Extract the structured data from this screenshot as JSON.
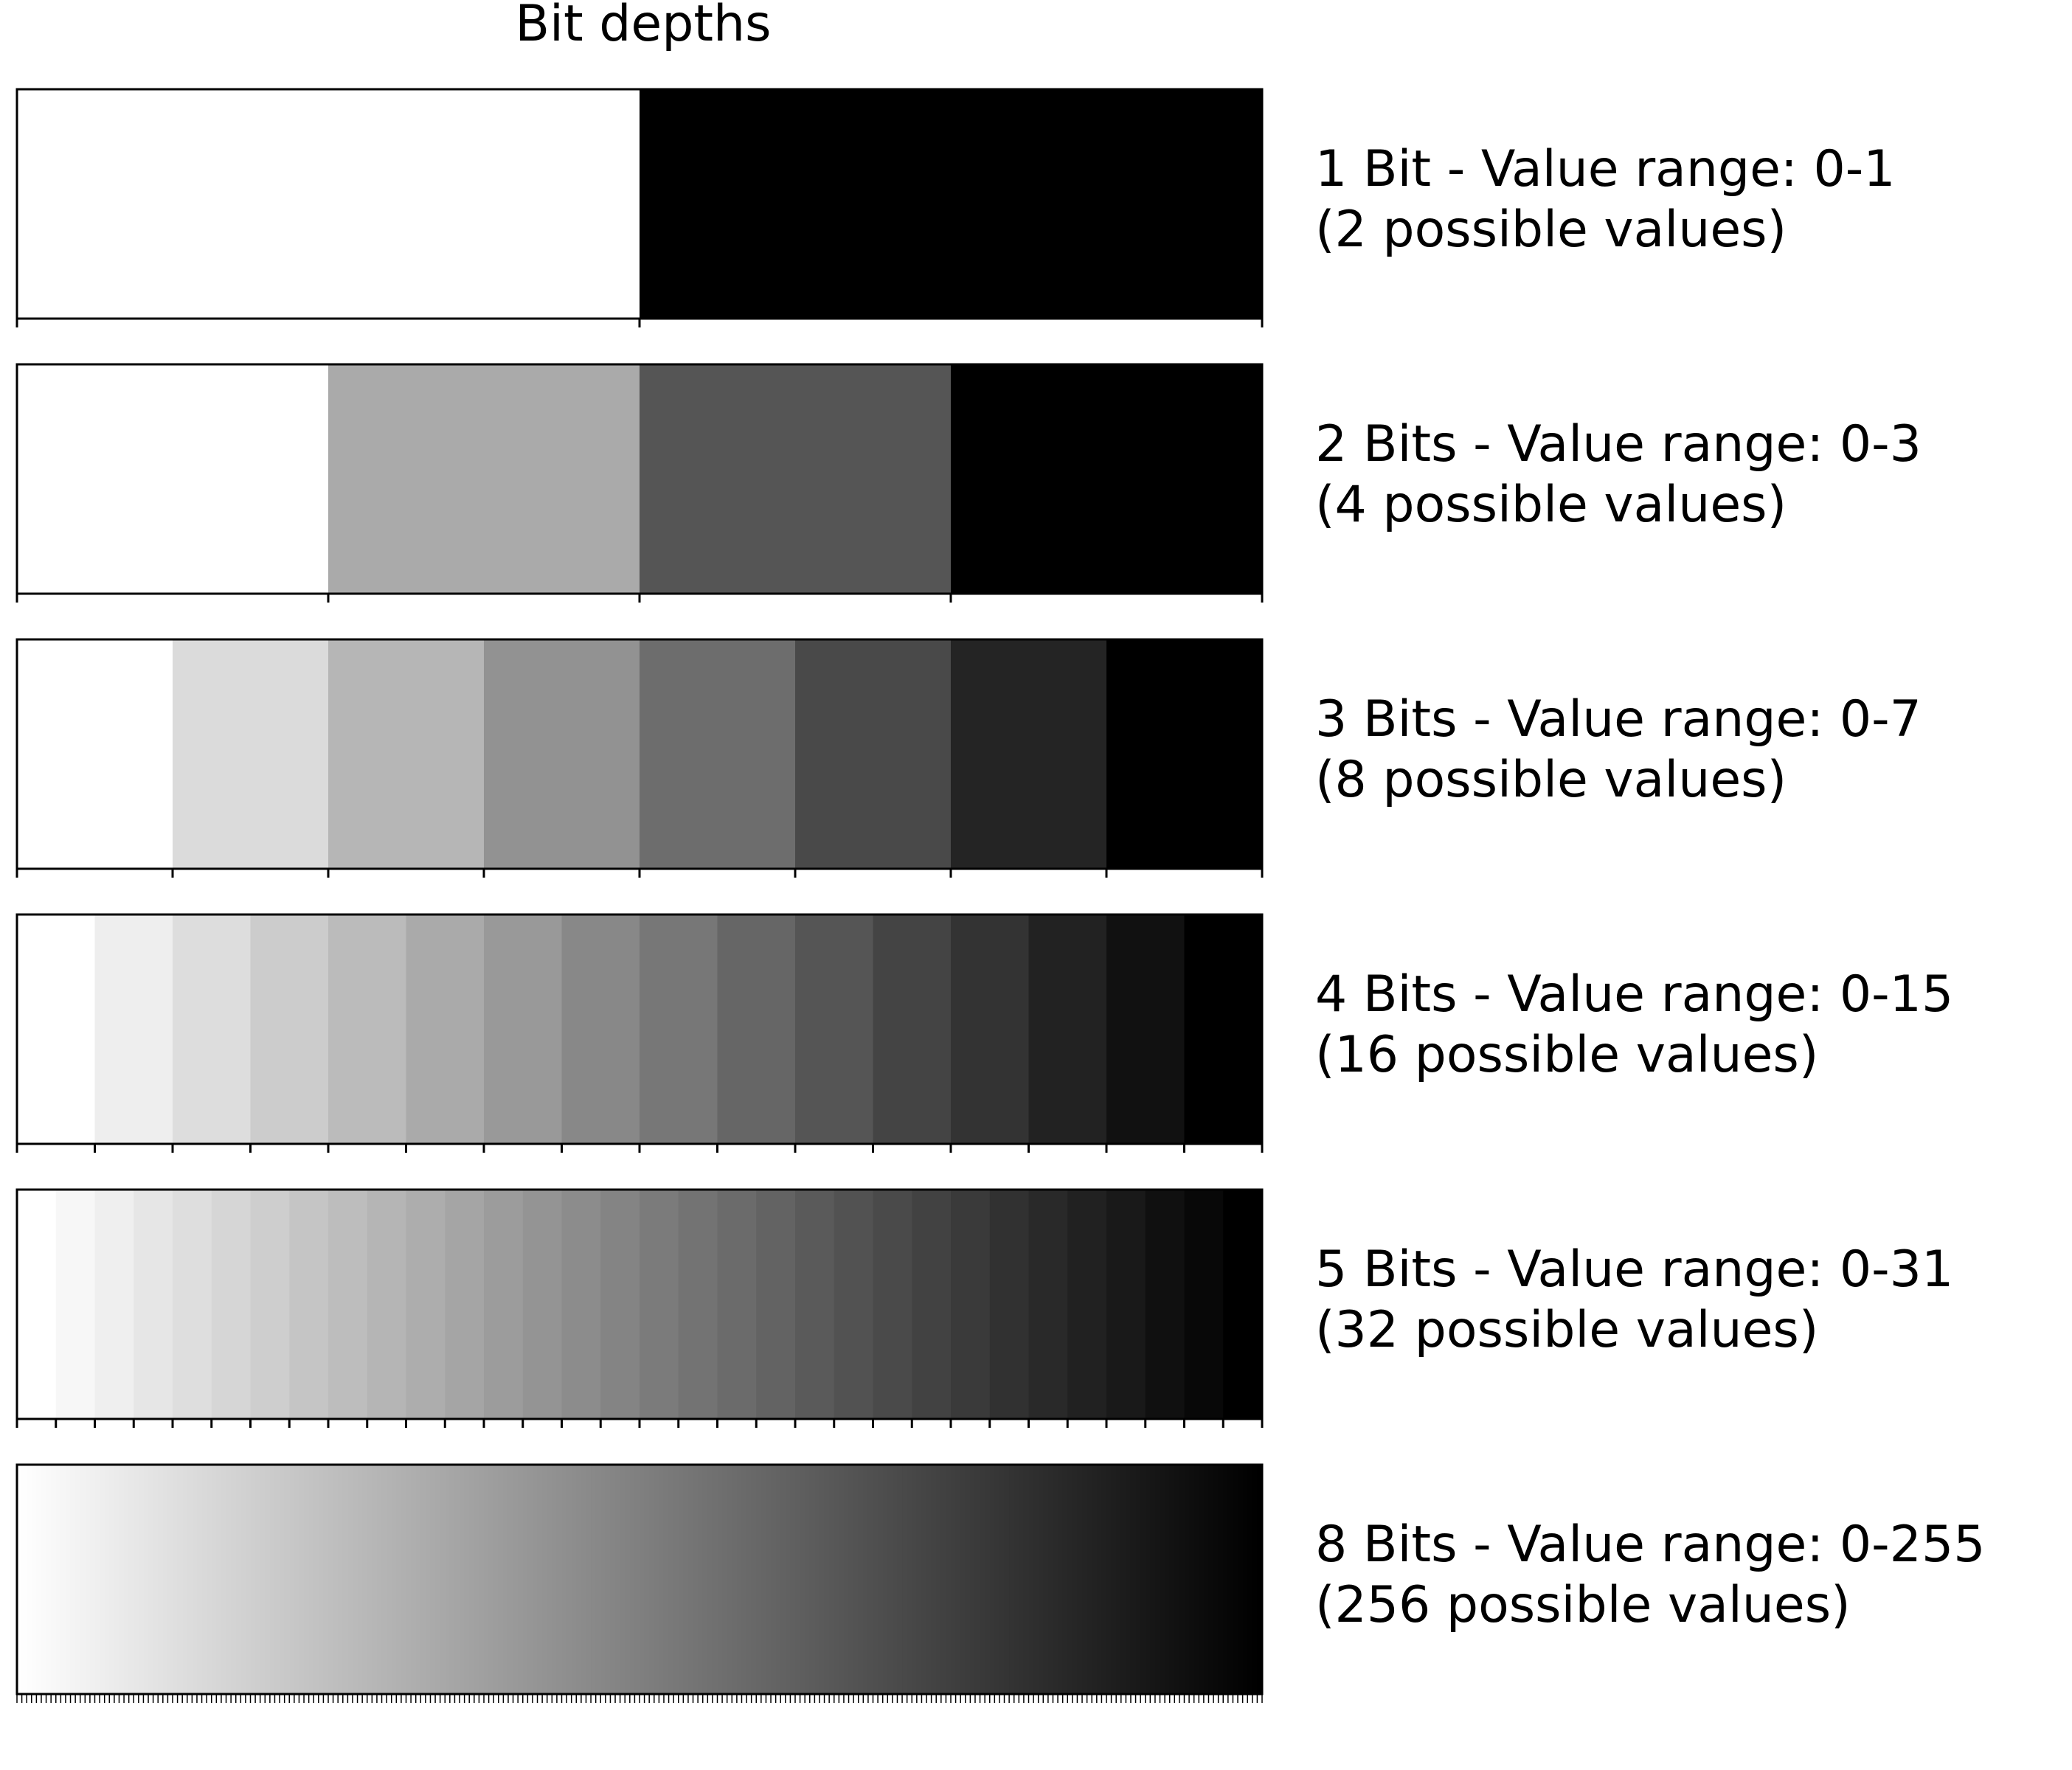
{
  "chart_data": {
    "type": "heatmap",
    "title": "Bit depths",
    "colormap": "gray_r (white = 0, black = max)",
    "ticks_visible": true,
    "tick_labels_visible": false,
    "rows": [
      {
        "bits": 1,
        "levels": 2,
        "label_line1": "1 Bit - Value range: 0-1",
        "label_line2": "(2 possible values)"
      },
      {
        "bits": 2,
        "levels": 4,
        "label_line1": "2 Bits - Value range: 0-3",
        "label_line2": "(4 possible values)"
      },
      {
        "bits": 3,
        "levels": 8,
        "label_line1": "3 Bits - Value range: 0-7",
        "label_line2": "(8 possible values)"
      },
      {
        "bits": 4,
        "levels": 16,
        "label_line1": "4 Bits - Value range: 0-15",
        "label_line2": "(16 possible values)"
      },
      {
        "bits": 5,
        "levels": 32,
        "label_line1": "5 Bits - Value range: 0-31",
        "label_line2": "(32 possible values)"
      },
      {
        "bits": 8,
        "levels": 256,
        "label_line1": "8 Bits - Value range: 0-255",
        "label_line2": "(256 possible values)"
      }
    ]
  }
}
